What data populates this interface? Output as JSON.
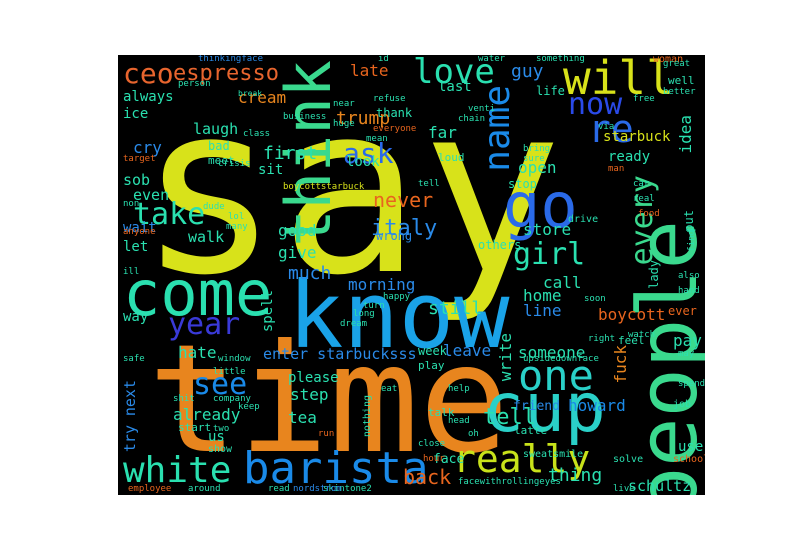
{
  "cloud": {
    "background": "#000000",
    "words": [
      {
        "text": "say",
        "color": "#d8e21a"
      },
      {
        "text": "time",
        "color": "#e8851e"
      },
      {
        "text": "know",
        "color": "#1aa3e8"
      },
      {
        "text": "people",
        "color": "#3ad98e"
      },
      {
        "text": "cup",
        "color": "#2ad0c8"
      },
      {
        "text": "come",
        "color": "#2ae0b0"
      },
      {
        "text": "think",
        "color": "#3ad98e"
      },
      {
        "text": "go",
        "color": "#2a6ae8"
      },
      {
        "text": "will",
        "color": "#d8e21a"
      },
      {
        "text": "barista",
        "color": "#1a8ae8"
      },
      {
        "text": "one",
        "color": "#2ad0c8"
      },
      {
        "text": "really",
        "color": "#c8e21a"
      },
      {
        "text": "white",
        "color": "#2ae0b0"
      },
      {
        "text": "love",
        "color": "#2ae0b0"
      },
      {
        "text": "name",
        "color": "#1a8ae8"
      },
      {
        "text": "now",
        "color": "#2a4ae8"
      },
      {
        "text": "re",
        "color": "#2a6ae8"
      },
      {
        "text": "every",
        "color": "#3ad98e"
      },
      {
        "text": "take",
        "color": "#2ae0b0"
      },
      {
        "text": "see",
        "color": "#1a8ae8"
      },
      {
        "text": "year",
        "color": "#3a3ad8"
      },
      {
        "text": "girl",
        "color": "#2ae0b0"
      },
      {
        "text": "ceo",
        "color": "#e8652e"
      },
      {
        "text": "espresso",
        "color": "#e8652e"
      },
      {
        "text": "ask",
        "color": "#2a6ae8"
      },
      {
        "text": "tell",
        "color": "#2ae0b0"
      },
      {
        "text": "back",
        "color": "#e8651e"
      },
      {
        "text": "thing",
        "color": "#2ae0b0"
      },
      {
        "text": "fuck",
        "color": "#e8851e"
      },
      {
        "text": "boycott",
        "color": "#e8651e"
      },
      {
        "text": "enter starbucksss",
        "color": "#2a8ae8"
      },
      {
        "text": "schultz",
        "color": "#2ae0b0"
      },
      {
        "text": "howard",
        "color": "#1a8ae8"
      },
      {
        "text": "someone",
        "color": "#2ae0b0"
      },
      {
        "text": "cream",
        "color": "#e8851e"
      },
      {
        "text": "late",
        "color": "#e8651e"
      },
      {
        "text": "trump",
        "color": "#e8851e"
      },
      {
        "text": "guy",
        "color": "#2a8ae8"
      },
      {
        "text": "ice",
        "color": "#2ae0b0"
      },
      {
        "text": "always",
        "color": "#2ae0b0"
      },
      {
        "text": "laugh",
        "color": "#2ae0b0"
      },
      {
        "text": "first",
        "color": "#2ae0b0"
      },
      {
        "text": "cry",
        "color": "#2a8ae8"
      },
      {
        "text": "sob",
        "color": "#2ae0b0"
      },
      {
        "text": "even",
        "color": "#2ae0b0"
      },
      {
        "text": "walk",
        "color": "#2ae0b0"
      },
      {
        "text": "good",
        "color": "#2ae0b0"
      },
      {
        "text": "give",
        "color": "#2ae0b0"
      },
      {
        "text": "much",
        "color": "#2a8ae8"
      },
      {
        "text": "still",
        "color": "#2ae0b0"
      },
      {
        "text": "never",
        "color": "#e8651e"
      },
      {
        "text": "italy",
        "color": "#2a8ae8"
      },
      {
        "text": "open",
        "color": "#2ae0b0"
      },
      {
        "text": "store",
        "color": "#2ae0b0"
      },
      {
        "text": "call",
        "color": "#2ae0b0"
      },
      {
        "text": "home",
        "color": "#2ae0b0"
      },
      {
        "text": "line",
        "color": "#2a8ae8"
      },
      {
        "text": "hate",
        "color": "#2ae0b0"
      },
      {
        "text": "already",
        "color": "#2ae0b0"
      },
      {
        "text": "morning",
        "color": "#2a8ae8"
      },
      {
        "text": "leave",
        "color": "#2a8ae8"
      },
      {
        "text": "write",
        "color": "#2ae0b0"
      },
      {
        "text": "pay",
        "color": "#2ae0b0"
      },
      {
        "text": "idea",
        "color": "#2ae0b0"
      },
      {
        "text": "last",
        "color": "#2ae0b0"
      },
      {
        "text": "far",
        "color": "#2ae0b0"
      },
      {
        "text": "look",
        "color": "#2ae0b0"
      },
      {
        "text": "sit",
        "color": "#2ae0b0"
      },
      {
        "text": "ready",
        "color": "#2ae0b0"
      },
      {
        "text": "starbuck",
        "color": "#d8e21a"
      },
      {
        "text": "let",
        "color": "#2ae0b0"
      },
      {
        "text": "wait",
        "color": "#2a8ae8"
      },
      {
        "text": "way",
        "color": "#2ae0b0"
      },
      {
        "text": "next",
        "color": "#2a8ae8"
      },
      {
        "text": "try",
        "color": "#2a8ae8"
      },
      {
        "text": "us",
        "color": "#2ae0b0"
      },
      {
        "text": "tea",
        "color": "#2ae0b0"
      },
      {
        "text": "step",
        "color": "#2ae0b0"
      },
      {
        "text": "please",
        "color": "#2ae0b0"
      },
      {
        "text": "friend",
        "color": "#2a8ae8"
      },
      {
        "text": "use",
        "color": "#2ae0b0"
      },
      {
        "text": "face",
        "color": "#2ae0b0"
      },
      {
        "text": "lady",
        "color": "#2ae0b0"
      },
      {
        "text": "put",
        "color": "#2ae0b0"
      },
      {
        "text": "ever",
        "color": "#e8651e"
      },
      {
        "text": "thank",
        "color": "#2ae0b0"
      },
      {
        "text": "spell",
        "color": "#2ae0b0"
      },
      {
        "text": "wrong",
        "color": "#2a8ae8"
      },
      {
        "text": "stop",
        "color": "#2ae0b0"
      },
      {
        "text": "bad",
        "color": "#2ae0b0"
      },
      {
        "text": "meet",
        "color": "#2ae0b0"
      },
      {
        "text": "life",
        "color": "#2ae0b0"
      },
      {
        "text": "week",
        "color": "#2ae0b0"
      },
      {
        "text": "feel",
        "color": "#2ae0b0"
      },
      {
        "text": "start",
        "color": "#2ae0b0"
      },
      {
        "text": "play",
        "color": "#2ae0b0"
      },
      {
        "text": "talk",
        "color": "#2ae0b0"
      },
      {
        "text": "show",
        "color": "#2ae0b0"
      },
      {
        "text": "nothing",
        "color": "#2ae0b0"
      },
      {
        "text": "job",
        "color": "#2ae0b0"
      },
      {
        "text": "latte",
        "color": "#2ae0b0"
      },
      {
        "text": "hour",
        "color": "#e8651e"
      },
      {
        "text": "others",
        "color": "#2ae0b0"
      },
      {
        "text": "drive",
        "color": "#2ae0b0"
      },
      {
        "text": "upsidedownface",
        "color": "#2ae0b0"
      },
      {
        "text": "sweatsmile",
        "color": "#2ae0b0"
      },
      {
        "text": "facewithrollingeyes",
        "color": "#2ae0b0"
      },
      {
        "text": "skintone2",
        "color": "#2ae0b0"
      },
      {
        "text": "boycottstarbuck",
        "color": "#d8e21a"
      },
      {
        "text": "nordstrom",
        "color": "#2a8ae8"
      },
      {
        "text": "employee",
        "color": "#e8651e"
      },
      {
        "text": "around",
        "color": "#2ae0b0"
      },
      {
        "text": "read",
        "color": "#2ae0b0"
      },
      {
        "text": "school",
        "color": "#e8651e"
      },
      {
        "text": "solve",
        "color": "#2ae0b0"
      },
      {
        "text": "live",
        "color": "#2ae0b0"
      },
      {
        "text": "thinkingface",
        "color": "#2a8ae8"
      },
      {
        "text": "something",
        "color": "#2ae0b0"
      },
      {
        "text": "woman",
        "color": "#e8651e"
      },
      {
        "text": "water",
        "color": "#2ae0b0"
      },
      {
        "text": "well",
        "color": "#2ae0b0"
      },
      {
        "text": "great",
        "color": "#2ae0b0"
      },
      {
        "text": "better",
        "color": "#2ae0b0"
      },
      {
        "text": "free",
        "color": "#2ae0b0"
      },
      {
        "text": "person",
        "color": "#2ae0b0"
      },
      {
        "text": "break",
        "color": "#2ae0b0"
      },
      {
        "text": "business",
        "color": "#2ae0b0"
      },
      {
        "text": "class",
        "color": "#2ae0b0"
      },
      {
        "text": "crisis",
        "color": "#2ae0b0"
      },
      {
        "text": "target",
        "color": "#e8651e"
      },
      {
        "text": "loud",
        "color": "#2ae0b0"
      },
      {
        "text": "bring",
        "color": "#2ae0b0"
      },
      {
        "text": "sure",
        "color": "#2ae0b0"
      },
      {
        "text": "man",
        "color": "#e8651e"
      },
      {
        "text": "car",
        "color": "#2ae0b0"
      },
      {
        "text": "real",
        "color": "#2ae0b0"
      },
      {
        "text": "find",
        "color": "#2ae0b0"
      },
      {
        "text": "also",
        "color": "#2ae0b0"
      },
      {
        "text": "hand",
        "color": "#2ae0b0"
      },
      {
        "text": "may",
        "color": "#2ae0b0"
      },
      {
        "text": "spend",
        "color": "#2ae0b0"
      },
      {
        "text": "watch",
        "color": "#2ae0b0"
      },
      {
        "text": "happy",
        "color": "#2ae0b0"
      },
      {
        "text": "long",
        "color": "#2ae0b0"
      },
      {
        "text": "dream",
        "color": "#2ae0b0"
      },
      {
        "text": "window",
        "color": "#2ae0b0"
      },
      {
        "text": "little",
        "color": "#2ae0b0"
      },
      {
        "text": "company",
        "color": "#2ae0b0"
      },
      {
        "text": "keep",
        "color": "#2ae0b0"
      },
      {
        "text": "safe",
        "color": "#2ae0b0"
      },
      {
        "text": "run",
        "color": "#e8651e"
      },
      {
        "text": "eat",
        "color": "#2ae0b0"
      },
      {
        "text": "help",
        "color": "#2ae0b0"
      },
      {
        "text": "head",
        "color": "#2ae0b0"
      },
      {
        "text": "close",
        "color": "#2ae0b0"
      },
      {
        "text": "oh",
        "color": "#2ae0b0"
      },
      {
        "text": "shit",
        "color": "#2ae0b0"
      },
      {
        "text": "two",
        "color": "#2ae0b0"
      },
      {
        "text": "ill",
        "color": "#2ae0b0"
      },
      {
        "text": "dude",
        "color": "#2ae0b0"
      },
      {
        "text": "lol",
        "color": "#2ae0b0"
      },
      {
        "text": "many",
        "color": "#2ae0b0"
      },
      {
        "text": "anyone",
        "color": "#e8651e"
      },
      {
        "text": "via",
        "color": "#2ae0b0"
      },
      {
        "text": "venti",
        "color": "#2ae0b0"
      },
      {
        "text": "chain",
        "color": "#2ae0b0"
      },
      {
        "text": "food",
        "color": "#e8651e"
      },
      {
        "text": "soon",
        "color": "#2ae0b0"
      },
      {
        "text": "right",
        "color": "#2ae0b0"
      },
      {
        "text": "turn",
        "color": "#2ae0b0"
      },
      {
        "text": "refuse",
        "color": "#2ae0b0"
      },
      {
        "text": "everyone",
        "color": "#e8651e"
      },
      {
        "text": "mean",
        "color": "#2ae0b0"
      },
      {
        "text": "near",
        "color": "#2ae0b0"
      },
      {
        "text": "huge",
        "color": "#2ae0b0"
      },
      {
        "text": "id",
        "color": "#2ae0b0"
      },
      {
        "text": "non",
        "color": "#2ae0b0"
      },
      {
        "text": "tell2",
        "color": "#2ae0b0"
      }
    ]
  }
}
